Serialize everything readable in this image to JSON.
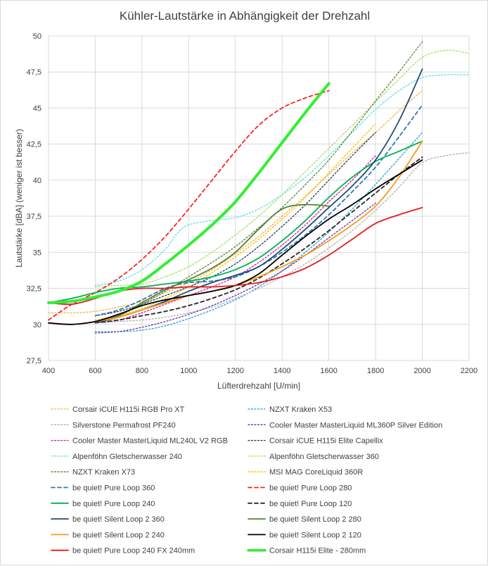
{
  "chart_data": {
    "type": "line",
    "title": "Kühler-Lautstärke in Abhängigkeit der Drehzahl",
    "xlabel": "Lüfterdrehzahl [U/min]",
    "ylabel": "Lautstärke [dBA] (weniger ist besser)",
    "xlim": [
      400,
      2200
    ],
    "ylim": [
      27.5,
      50
    ],
    "x_ticks": [
      "400",
      "600",
      "800",
      "1000",
      "1200",
      "1400",
      "1600",
      "1800",
      "2000",
      "2200"
    ],
    "y_ticks": [
      "27,5",
      "30",
      "32,5",
      "35",
      "37,5",
      "40",
      "42,5",
      "45",
      "47,5",
      "50"
    ],
    "grid": true,
    "legend_position": "bottom",
    "series": [
      {
        "name": "Corsair iCUE H115i RGB Pro XT",
        "color": "#f4b33a",
        "dash": "dot",
        "width": 1.3,
        "x": [
          400,
          500,
          600,
          700,
          800,
          900,
          1000,
          1100,
          1200,
          1300,
          1400,
          1500,
          1600,
          1700,
          1800,
          1900,
          2000
        ],
        "y": [
          30.8,
          30.8,
          30.9,
          31.2,
          31.6,
          32.2,
          32.9,
          33.8,
          34.9,
          36.1,
          37.5,
          38.9,
          40.4,
          41.9,
          43.3,
          44.8,
          46.2
        ]
      },
      {
        "name": "NZXT Kraken X53",
        "color": "#1fa0d8",
        "dash": "dot",
        "width": 1.3,
        "x": [
          600,
          700,
          800,
          900,
          1000,
          1100,
          1200,
          1300,
          1400,
          1500,
          1600,
          1700,
          1800,
          1900,
          2000
        ],
        "y": [
          29.5,
          29.5,
          29.6,
          29.9,
          30.4,
          31.0,
          31.7,
          32.6,
          33.7,
          35.0,
          36.4,
          38.0,
          39.7,
          41.5,
          43.3
        ]
      },
      {
        "name": "Silverstone Permafrost PF240",
        "color": "#b0b0b0",
        "dash": "dot",
        "width": 1.3,
        "x": [
          600,
          700,
          800,
          900,
          1000,
          1100,
          1200,
          1300,
          1400,
          1500,
          1600,
          1700,
          1800,
          1900,
          2000,
          2100,
          2200
        ],
        "y": [
          30.1,
          30.2,
          30.3,
          30.5,
          30.8,
          31.2,
          31.8,
          32.5,
          33.3,
          34.2,
          35.3,
          36.5,
          37.9,
          39.5,
          41.2,
          41.7,
          41.9
        ]
      },
      {
        "name": "Cooler Master MasterLiquid ML360P Silver Edition",
        "color": "#7030a0",
        "dash": "dot",
        "width": 1.3,
        "x": [
          600,
          700,
          800,
          900,
          1000,
          1100,
          1200,
          1300,
          1400,
          1500,
          1600,
          1700,
          1800
        ],
        "y": [
          29.4,
          29.5,
          29.8,
          30.2,
          30.7,
          31.3,
          32.0,
          32.8,
          33.7,
          34.8,
          36.0,
          37.2,
          38.4
        ]
      },
      {
        "name": "Cooler Master MasterLiquid ML240L V2 RGB",
        "color": "#e0108c",
        "dash": "dot",
        "width": 1.3,
        "x": [
          600,
          700,
          800,
          900,
          1000,
          1100,
          1200,
          1300,
          1400,
          1500,
          1600,
          1700,
          1800
        ],
        "y": [
          30.1,
          30.3,
          30.8,
          31.4,
          32.0,
          32.6,
          33.3,
          34.3,
          35.5,
          36.9,
          38.5,
          40.0,
          41.7
        ]
      },
      {
        "name": "Corsair iCUE H115i Elite Capellix",
        "color": "#1f3864",
        "dash": "dot",
        "width": 1.3,
        "x": [
          600,
          700,
          800,
          900,
          1000,
          1100,
          1200,
          1300,
          1400,
          1500,
          1600,
          1700,
          1800
        ],
        "y": [
          30.6,
          30.9,
          31.4,
          32.0,
          32.6,
          33.3,
          34.2,
          35.4,
          36.8,
          38.3,
          40.0,
          41.7,
          43.3
        ]
      },
      {
        "name": "Alpenföhn Gletscherwasser 240",
        "color": "#5ee1e1",
        "dash": "dot",
        "width": 1.3,
        "x": [
          600,
          700,
          800,
          900,
          950,
          1000,
          1100,
          1200,
          1300,
          1400,
          1500,
          1600,
          1700,
          1800,
          1900,
          2000,
          2100,
          2200
        ],
        "y": [
          32.7,
          33.0,
          33.8,
          35.2,
          36.3,
          36.9,
          37.2,
          37.4,
          38.0,
          39.0,
          40.2,
          41.7,
          43.3,
          44.9,
          46.2,
          47.1,
          47.3,
          47.3
        ]
      },
      {
        "name": "Alpenföhn Gletscherwasser 360",
        "color": "#9de35a",
        "dash": "dot",
        "width": 1.3,
        "x": [
          600,
          700,
          800,
          900,
          1000,
          1100,
          1200,
          1300,
          1400,
          1500,
          1600,
          1700,
          1800,
          1900,
          2000,
          2100,
          2200
        ],
        "y": [
          32.6,
          32.7,
          32.8,
          33.3,
          34.0,
          35.0,
          36.2,
          37.5,
          39.0,
          40.6,
          42.2,
          43.8,
          45.4,
          47.0,
          48.5,
          49.0,
          48.8
        ]
      },
      {
        "name": "NZXT Kraken X73",
        "color": "#548235",
        "dash": "dot",
        "width": 1.3,
        "x": [
          600,
          700,
          800,
          900,
          1000,
          1100,
          1200,
          1300,
          1400,
          1500,
          1600,
          1700,
          1800,
          1900,
          2000
        ],
        "y": [
          30.2,
          30.6,
          31.4,
          32.3,
          33.3,
          34.3,
          35.4,
          36.7,
          38.1,
          39.7,
          41.4,
          43.4,
          45.5,
          47.5,
          49.6
        ]
      },
      {
        "name": "MSI MAG CoreLiquid 360R",
        "color": "#ffc000",
        "dash": "dot",
        "width": 1.3,
        "x": [
          600,
          700,
          800,
          900,
          1000,
          1100,
          1200,
          1300,
          1400,
          1500,
          1600,
          1700,
          1800
        ],
        "y": [
          30.3,
          30.6,
          31.1,
          31.8,
          32.6,
          33.6,
          34.7,
          35.9,
          37.3,
          38.8,
          40.5,
          42.2,
          43.9
        ]
      },
      {
        "name": "be quiet! Pure Loop 360",
        "color": "#2e75b6",
        "dash": "dash",
        "width": 1.8,
        "x": [
          600,
          700,
          800,
          900,
          1000,
          1100,
          1200,
          1300,
          1400,
          1500,
          1600,
          1700,
          1800,
          1900,
          2000
        ],
        "y": [
          30.6,
          31.0,
          31.7,
          32.5,
          32.9,
          33.0,
          33.3,
          34.0,
          35.0,
          36.2,
          37.6,
          39.2,
          40.9,
          43.0,
          45.2
        ]
      },
      {
        "name": "be quiet! Pure Loop 280",
        "color": "#ff1f1f",
        "dash": "dash",
        "width": 1.8,
        "x": [
          400,
          500,
          600,
          700,
          800,
          900,
          1000,
          1100,
          1200,
          1300,
          1400,
          1500,
          1600
        ],
        "y": [
          30.3,
          31.4,
          32.2,
          33.2,
          34.5,
          36.1,
          38.0,
          40.0,
          42.0,
          43.8,
          45.0,
          45.7,
          46.2
        ]
      },
      {
        "name": "be quiet! Pure Loop 240",
        "color": "#00b050",
        "dash": "solid",
        "width": 1.8,
        "x": [
          400,
          500,
          600,
          700,
          800,
          900,
          1000,
          1100,
          1200,
          1300,
          1400,
          1500,
          1600,
          1700,
          1800,
          1900,
          2000
        ],
        "y": [
          31.5,
          31.8,
          32.2,
          32.5,
          32.6,
          32.8,
          33.0,
          33.3,
          33.8,
          34.6,
          35.8,
          37.2,
          38.8,
          40.2,
          41.3,
          42.0,
          42.7
        ]
      },
      {
        "name": "be quiet! Pure Loop 120",
        "color": "#262626",
        "dash": "dash",
        "width": 1.8,
        "x": [
          600,
          700,
          800,
          900,
          1000,
          1100,
          1200,
          1300,
          1400,
          1500,
          1600,
          1700,
          1800,
          1900,
          2000
        ],
        "y": [
          30.1,
          30.3,
          30.6,
          30.9,
          31.3,
          31.8,
          32.4,
          33.2,
          34.2,
          35.3,
          36.5,
          37.8,
          39.1,
          40.4,
          41.6
        ]
      },
      {
        "name": "be quiet! Silent Loop 2 360",
        "color": "#1f4e79",
        "dash": "solid",
        "width": 1.8,
        "x": [
          600,
          700,
          800,
          900,
          1000,
          1100,
          1200,
          1300,
          1400,
          1500,
          1600,
          1700,
          1800,
          1900,
          2000
        ],
        "y": [
          30.1,
          30.5,
          31.0,
          31.6,
          32.3,
          32.9,
          33.4,
          34.0,
          35.2,
          36.6,
          38.1,
          39.6,
          41.4,
          44.1,
          47.7
        ]
      },
      {
        "name": "be quiet! Silent Loop 2 280",
        "color": "#548235",
        "dash": "solid",
        "width": 1.8,
        "x": [
          600,
          700,
          800,
          900,
          1000,
          1100,
          1200,
          1300,
          1400,
          1500,
          1600
        ],
        "y": [
          30.2,
          30.6,
          31.5,
          32.4,
          33.1,
          33.9,
          35.0,
          36.6,
          38.0,
          38.3,
          38.2
        ]
      },
      {
        "name": "be quiet! Silent Loop 2 240",
        "color": "#f79a1e",
        "dash": "solid",
        "width": 1.8,
        "x": [
          400,
          500,
          600,
          700,
          800,
          900,
          1000,
          1100,
          1200,
          1300,
          1400,
          1500,
          1600,
          1700,
          1800,
          1900,
          2000
        ],
        "y": [
          30.1,
          30.0,
          30.2,
          30.5,
          31.0,
          31.5,
          32.0,
          32.3,
          32.7,
          33.3,
          34.0,
          34.8,
          35.8,
          36.9,
          38.2,
          40.2,
          42.7
        ]
      },
      {
        "name": "be quiet! Silent Loop 2 120",
        "color": "#000000",
        "dash": "solid",
        "width": 1.8,
        "x": [
          400,
          500,
          600,
          700,
          800,
          900,
          1000,
          1100,
          1200,
          1300,
          1400,
          1500,
          1600,
          1700,
          1800,
          1900,
          2000
        ],
        "y": [
          30.1,
          30.0,
          30.2,
          30.7,
          31.3,
          31.7,
          32.0,
          32.3,
          32.7,
          33.5,
          34.8,
          36.1,
          37.3,
          38.3,
          39.4,
          40.4,
          41.4
        ]
      },
      {
        "name": "be quiet! Pure Loop 240 FX 240mm",
        "color": "#e31a1c",
        "dash": "solid",
        "width": 1.8,
        "x": [
          400,
          500,
          600,
          700,
          800,
          900,
          1000,
          1100,
          1200,
          1300,
          1400,
          1500,
          1600,
          1700,
          1800,
          1900,
          2000
        ],
        "y": [
          31.5,
          31.4,
          31.8,
          32.3,
          32.5,
          32.5,
          32.6,
          32.6,
          32.7,
          32.9,
          33.3,
          33.9,
          34.8,
          35.9,
          37.0,
          37.6,
          38.1
        ]
      },
      {
        "name": "Corsair H115i Elite - 280mm",
        "color": "#33ee33",
        "dash": "solid",
        "width": 4,
        "x": [
          400,
          500,
          600,
          700,
          800,
          900,
          1000,
          1100,
          1200,
          1300,
          1400,
          1500,
          1600
        ],
        "y": [
          31.5,
          31.6,
          31.9,
          32.3,
          33.0,
          34.2,
          35.5,
          36.9,
          38.5,
          40.5,
          42.6,
          44.7,
          46.7
        ]
      }
    ]
  }
}
